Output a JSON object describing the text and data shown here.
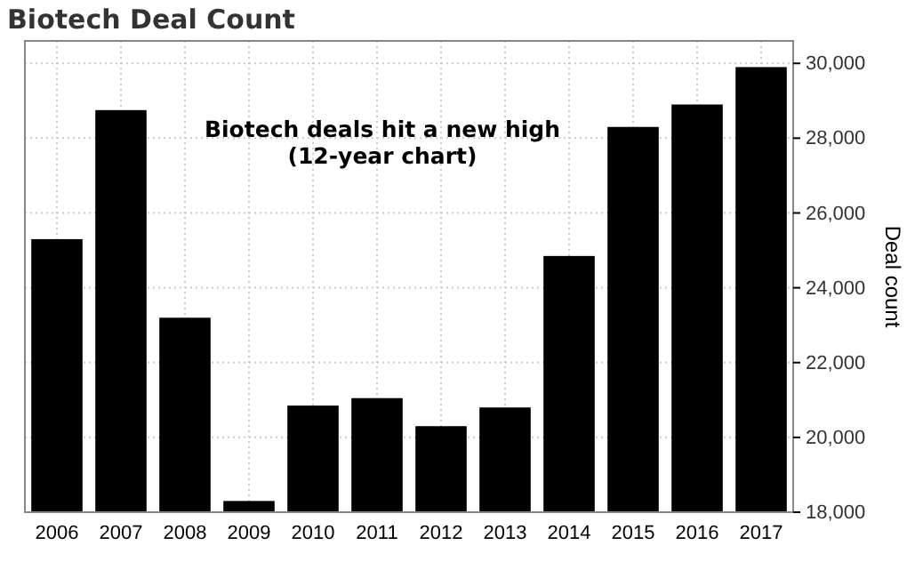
{
  "chart_data": {
    "type": "bar",
    "title": "Biotech Deal Count",
    "ylabel": "Deal count",
    "annotations": [
      "Biotech deals hit a new high\n(12-year chart)"
    ],
    "categories": [
      "2006",
      "2007",
      "2008",
      "2009",
      "2010",
      "2011",
      "2012",
      "2013",
      "2014",
      "2015",
      "2016",
      "2017"
    ],
    "values": [
      25300,
      28750,
      23200,
      18300,
      20850,
      21050,
      20300,
      20800,
      24850,
      28300,
      28900,
      29900
    ],
    "color": "#000000",
    "ylim": [
      18000,
      30600
    ],
    "yticks": [
      {
        "value": 18000,
        "label": "18,000"
      },
      {
        "value": 20000,
        "label": "20,000"
      },
      {
        "value": 22000,
        "label": "22,000"
      },
      {
        "value": 24000,
        "label": "24,000"
      },
      {
        "value": 26000,
        "label": "26,000"
      },
      {
        "value": 28000,
        "label": "28,000"
      },
      {
        "value": 30000,
        "label": "30,000"
      }
    ],
    "grid": true
  }
}
